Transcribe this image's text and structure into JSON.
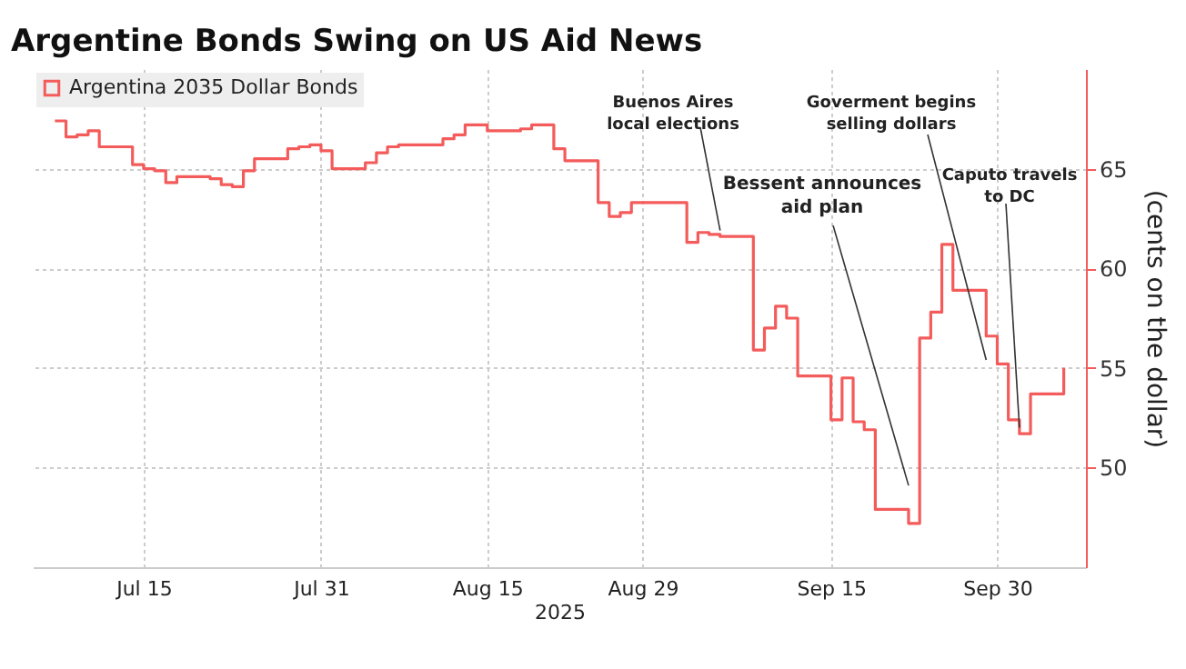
{
  "chart_data": {
    "type": "step",
    "title": "Argentine Bonds Swing on US Aid News",
    "xlabel": "2025",
    "ylabel": "(cents on the dollar)",
    "x": [
      "2025-07-07",
      "2025-07-08",
      "2025-07-09",
      "2025-07-10",
      "2025-07-11",
      "2025-07-14",
      "2025-07-15",
      "2025-07-16",
      "2025-07-17",
      "2025-07-18",
      "2025-07-21",
      "2025-07-22",
      "2025-07-23",
      "2025-07-24",
      "2025-07-25",
      "2025-07-28",
      "2025-07-29",
      "2025-07-30",
      "2025-07-31",
      "2025-08-01",
      "2025-08-04",
      "2025-08-05",
      "2025-08-06",
      "2025-08-07",
      "2025-08-08",
      "2025-08-11",
      "2025-08-12",
      "2025-08-13",
      "2025-08-14",
      "2025-08-15",
      "2025-08-18",
      "2025-08-19",
      "2025-08-20",
      "2025-08-21",
      "2025-08-22",
      "2025-08-25",
      "2025-08-26",
      "2025-08-27",
      "2025-08-28",
      "2025-08-29",
      "2025-09-02",
      "2025-09-03",
      "2025-09-04",
      "2025-09-05",
      "2025-09-08",
      "2025-09-09",
      "2025-09-10",
      "2025-09-11",
      "2025-09-12",
      "2025-09-15",
      "2025-09-16",
      "2025-09-17",
      "2025-09-18",
      "2025-09-19",
      "2025-09-22",
      "2025-09-23",
      "2025-09-24",
      "2025-09-25",
      "2025-09-26",
      "2025-09-29",
      "2025-09-30",
      "2025-10-01",
      "2025-10-02",
      "2025-10-03",
      "2025-10-06"
    ],
    "series": [
      {
        "name": "Argentina 2035 Dollar Bonds",
        "color": "#f45b5b",
        "values": [
          67.4,
          66.6,
          66.7,
          66.9,
          66.1,
          65.2,
          65.0,
          64.9,
          64.3,
          64.6,
          64.5,
          64.2,
          64.1,
          64.9,
          65.5,
          66.0,
          66.1,
          66.2,
          65.9,
          65.0,
          65.3,
          65.8,
          66.1,
          66.2,
          66.2,
          66.5,
          66.7,
          67.2,
          67.2,
          66.9,
          67.0,
          67.2,
          67.2,
          66.0,
          65.4,
          63.3,
          62.6,
          62.8,
          63.3,
          63.3,
          61.3,
          61.8,
          61.7,
          61.6,
          55.9,
          57.0,
          58.1,
          57.5,
          54.6,
          52.4,
          54.5,
          52.3,
          51.9,
          47.9,
          47.2,
          56.5,
          57.8,
          61.2,
          58.9,
          56.6,
          55.2,
          52.4,
          51.7,
          53.7,
          55.0
        ]
      }
    ],
    "xlim": [
      "2025-07-05",
      "2025-10-08"
    ],
    "xticks": [
      {
        "value": "2025-07-15",
        "label": "Jul 15"
      },
      {
        "value": "2025-07-31",
        "label": "Jul 31"
      },
      {
        "value": "2025-08-15",
        "label": "Aug 15"
      },
      {
        "value": "2025-08-29",
        "label": "Aug 29"
      },
      {
        "value": "2025-09-15",
        "label": "Sep 15"
      },
      {
        "value": "2025-09-30",
        "label": "Sep 30"
      }
    ],
    "ylim": [
      45,
      70
    ],
    "yticks": [
      50,
      55,
      60,
      65
    ],
    "grid": true,
    "legend": "top left",
    "marker": "none",
    "annotations": [
      {
        "text": "Buenos Aires\nlocal elections",
        "x": "2025-09-05",
        "y": 61.9
      },
      {
        "text": "Bessent announces\naid plan",
        "x": "2025-09-22",
        "y": 49.1
      },
      {
        "text": "Goverment begins\nselling dollars",
        "x": "2025-09-29",
        "y": 55.4
      },
      {
        "text": "Caputo travels\nto DC",
        "x": "2025-10-02",
        "y": 52.0
      }
    ]
  }
}
